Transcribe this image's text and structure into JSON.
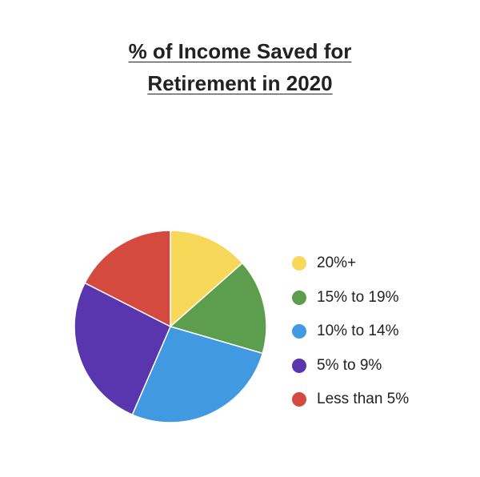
{
  "chart_data": {
    "type": "pie",
    "title_lines": [
      "% of Income Saved for ",
      "Retirement in 2020"
    ],
    "categories": [
      "20%+",
      "15% to 19%",
      "10% to 14%",
      "5% to 9%",
      "Less than 5%"
    ],
    "values": [
      13.5,
      16,
      27,
      26,
      17.5
    ],
    "colors": [
      "#F7D858",
      "#5C9E4E",
      "#4199E1",
      "#5936AE",
      "#D54A3E"
    ],
    "legend_position": "right",
    "start_angle_deg": 0,
    "direction": "clockwise"
  }
}
